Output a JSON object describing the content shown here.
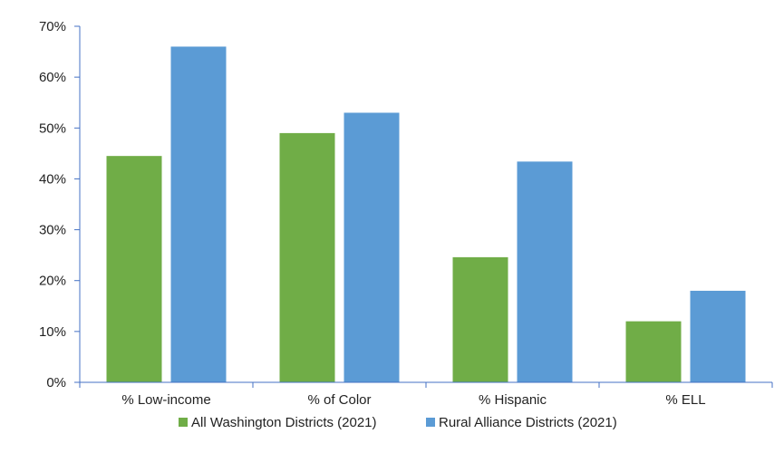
{
  "chart_data": {
    "type": "bar",
    "categories": [
      "% Low-income",
      "% of Color",
      "% Hispanic",
      "% ELL"
    ],
    "series": [
      {
        "name": "All Washington Districts (2021)",
        "color": "#70ad47",
        "values": [
          44.5,
          49,
          24.6,
          12
        ]
      },
      {
        "name": "Rural Alliance Districts (2021)",
        "color": "#5b9bd5",
        "values": [
          66,
          53,
          43.4,
          18
        ]
      }
    ],
    "ylim": [
      0,
      70
    ],
    "yticks": [
      "0%",
      "10%",
      "20%",
      "30%",
      "40%",
      "50%",
      "60%",
      "70%"
    ],
    "ytick_values": [
      0,
      10,
      20,
      30,
      40,
      50,
      60,
      70
    ],
    "grid": false,
    "legend_position": "bottom"
  }
}
